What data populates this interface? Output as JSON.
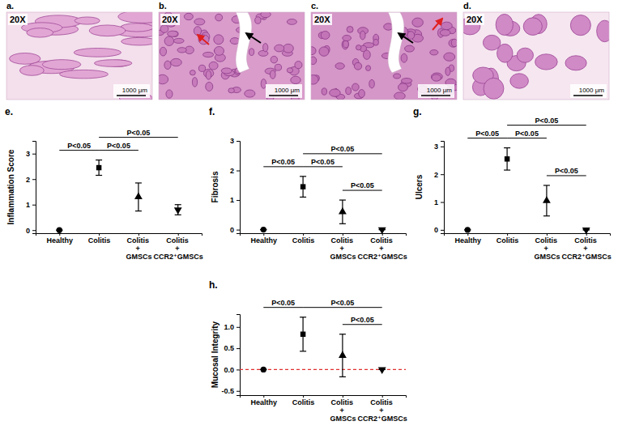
{
  "images": [
    {
      "label": "a.",
      "magnification": "20X",
      "scale_bar": "1000 μm"
    },
    {
      "label": "b.",
      "magnification": "20X",
      "scale_bar": "1000 μm"
    },
    {
      "label": "c.",
      "magnification": "20X",
      "scale_bar": "1000 μm"
    },
    {
      "label": "d.",
      "magnification": "20X",
      "scale_bar": "1000 μm"
    }
  ],
  "chart_data": [
    {
      "type": "scatter",
      "label": "e.",
      "ylabel": "Inflammation Score",
      "categories": [
        "Healthy",
        "Colitis",
        "Colitis + GMSCs",
        "Colitis + CCR2⁺GMSCs"
      ],
      "values": [
        0,
        2.45,
        1.3,
        0.8
      ],
      "errors": [
        0,
        0.3,
        0.55,
        0.2
      ],
      "color": "#000000",
      "ylim": [
        -0.12,
        3.5
      ],
      "yticks": [
        0,
        1,
        2,
        3
      ],
      "annotations": [
        {
          "text": "P<0.05",
          "from": 0,
          "to": 1
        },
        {
          "text": "P<0.05",
          "from": 1,
          "to": 2
        },
        {
          "text": "P<0.05",
          "from": 1,
          "to": 3
        }
      ]
    },
    {
      "type": "scatter",
      "label": "f.",
      "ylabel": "Fibrosis",
      "categories": [
        "Healthy",
        "Colitis",
        "Colitis + GMSCs",
        "Colitis + CCR2⁺GMSCs"
      ],
      "values": [
        0,
        1.45,
        0.6,
        0
      ],
      "errors": [
        0,
        0.35,
        0.4,
        0
      ],
      "color": "#000000",
      "ylim": [
        -0.12,
        3
      ],
      "yticks": [
        0,
        1,
        2,
        3
      ],
      "annotations": [
        {
          "text": "P<0.05",
          "from": 2,
          "to": 3
        },
        {
          "text": "P<0.05",
          "from": 1,
          "to": 2
        },
        {
          "text": "P<0.05",
          "from": 0,
          "to": 1
        },
        {
          "text": "P<0.05",
          "from": 1,
          "to": 3
        }
      ]
    },
    {
      "type": "scatter",
      "label": "g.",
      "ylabel": "Ulcers",
      "categories": [
        "Healthy",
        "Colitis",
        "Colitis + GMSCs",
        "Colitis + CCR2⁺GMSCs"
      ],
      "values": [
        0,
        2.55,
        1.05,
        0
      ],
      "errors": [
        0,
        0.4,
        0.55,
        0
      ],
      "color": "#000000",
      "ylim": [
        -0.12,
        3.2
      ],
      "yticks": [
        0,
        1,
        2,
        3
      ],
      "annotations": [
        {
          "text": "P<0.05",
          "from": 2,
          "to": 3
        },
        {
          "text": "P<0.05",
          "from": 1,
          "to": 2
        },
        {
          "text": "P<0.05",
          "from": 0,
          "to": 1
        },
        {
          "text": "P<0.05",
          "from": 1,
          "to": 3
        }
      ]
    },
    {
      "type": "scatter",
      "label": "h.",
      "ylabel": "Mucosal Integrity",
      "categories": [
        "Healthy",
        "Colitis",
        "Colitis + GMSCs",
        "Colitis + CCR2⁺GMSCs"
      ],
      "values": [
        0,
        0.83,
        0.33,
        0
      ],
      "errors": [
        0,
        0.4,
        0.5,
        0
      ],
      "color": "#000000",
      "ylim": [
        -0.6,
        1.3
      ],
      "yticks": [
        -0.5,
        {
          "value": 0,
          "label": "0.0"
        },
        0.5,
        {
          "value": 1,
          "label": "1.0"
        }
      ],
      "reference_line": {
        "value": 0,
        "color": "#e03030",
        "line_style": "dashed"
      },
      "annotations": [
        {
          "text": "P<0.05",
          "from": 2,
          "to": 3
        },
        {
          "text": "P<0.05",
          "from": 0,
          "to": 1
        },
        {
          "text": "P<0.05",
          "from": 1,
          "to": 3
        }
      ]
    }
  ]
}
